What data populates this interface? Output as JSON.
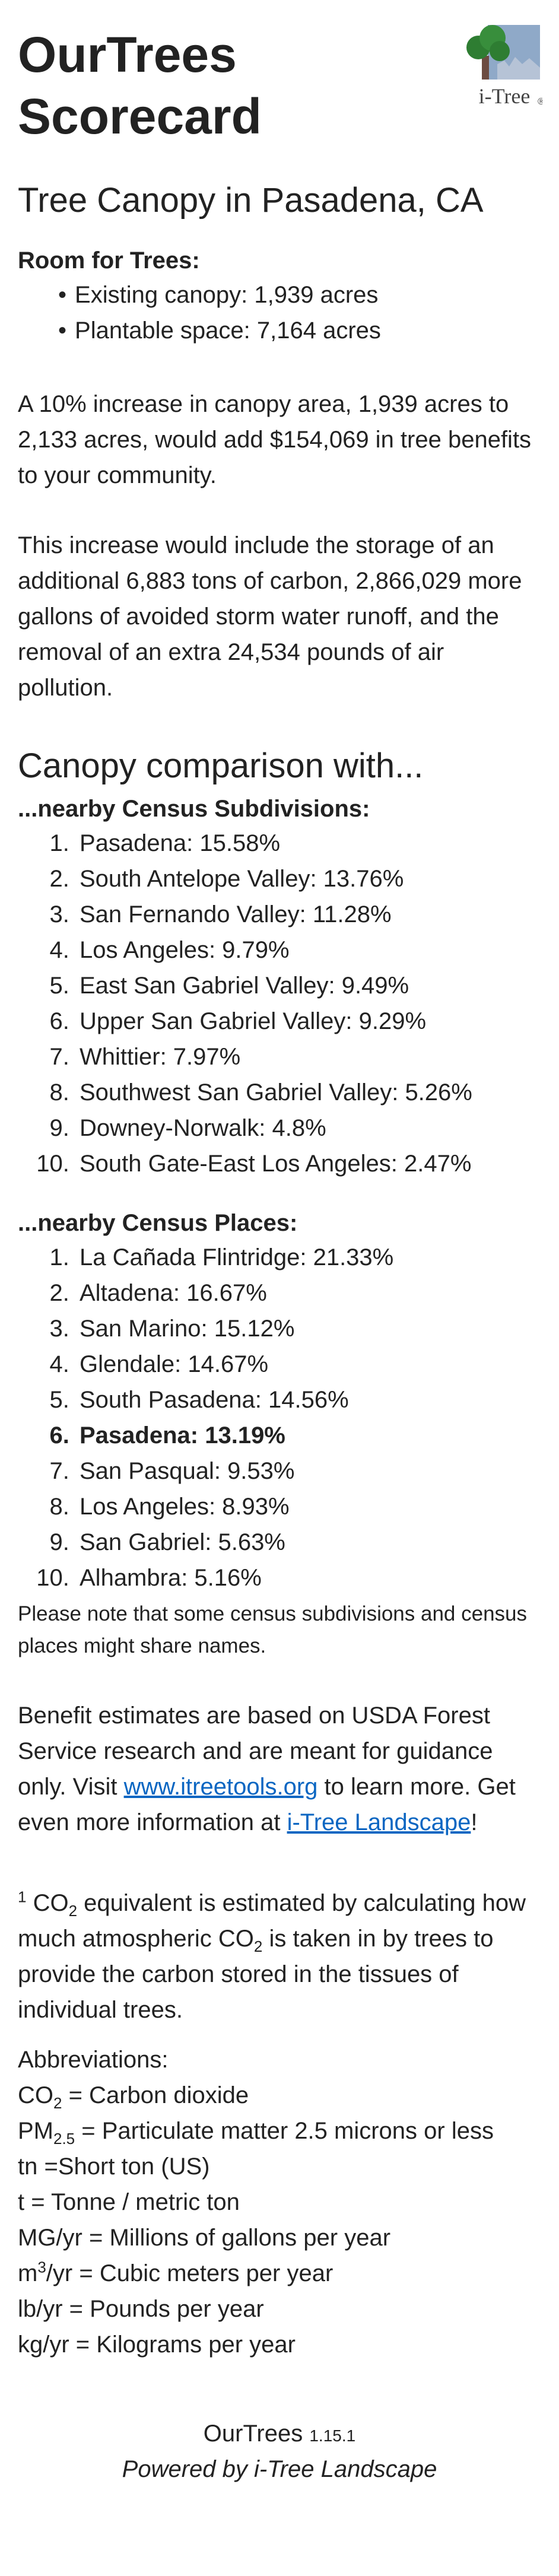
{
  "header": {
    "title": "OurTrees Scorecard",
    "logo_text": "i-Tree",
    "logo_mark": "®"
  },
  "subtitle": "Tree Canopy in Pasadena, CA",
  "room": {
    "label": "Room for Trees:",
    "items": [
      "Existing canopy: 1,939 acres",
      "Plantable space: 7,164 acres"
    ]
  },
  "para1": "A 10% increase in canopy area, 1,939 acres to 2,133 acres, would add $154,069 in tree benefits to your community.",
  "para2": "This increase would include the storage of an additional 6,883 tons of carbon, 2,866,029 more gallons of avoided storm water runoff, and the removal of an extra 24,534 pounds of air pollution.",
  "comparison": {
    "heading": "Canopy comparison with...",
    "subdivisions": {
      "label": "...nearby Census Subdivisions:",
      "items": [
        "Pasadena: 15.58%",
        "South Antelope Valley: 13.76%",
        "San Fernando Valley: 11.28%",
        "Los Angeles: 9.79%",
        "East San Gabriel Valley: 9.49%",
        "Upper San Gabriel Valley: 9.29%",
        "Whittier: 7.97%",
        "Southwest San Gabriel Valley: 5.26%",
        "Downey-Norwalk: 4.8%",
        "South Gate-East Los Angeles: 2.47%"
      ]
    },
    "places": {
      "label": "...nearby Census Places:",
      "items": [
        "La Cañada Flintridge: 21.33%",
        "Altadena: 16.67%",
        "San Marino: 15.12%",
        "Glendale: 14.67%",
        "South Pasadena: 14.56%",
        "Pasadena: 13.19%",
        "San Pasqual: 9.53%",
        "Los Angeles: 8.93%",
        "San Gabriel: 5.63%",
        "Alhambra: 5.16%"
      ],
      "highlight_index": 5
    },
    "note": "Please note that some census subdivisions and census places might share names."
  },
  "benefit": {
    "text1": "Benefit estimates are based on USDA Forest Service research and are meant for guidance only. Visit ",
    "link1": "www.itreetools.org",
    "text2": " to learn more. Get even more information at ",
    "link2": "i-Tree Landscape",
    "text3": "!"
  },
  "footnote": {
    "number": "1",
    "a": " CO",
    "sub1": "2",
    "b": " equivalent is estimated by calculating how much atmospheric CO",
    "sub2": "2",
    "c": " is taken in by trees to provide the carbon stored in the tissues of individual trees."
  },
  "abbreviations": {
    "label": "Abbreviations:",
    "co2_a": "CO",
    "co2_sub": "2",
    "co2_b": " = Carbon dioxide",
    "pm_a": "PM",
    "pm_sub": "2.5",
    "pm_b": " = Particulate matter 2.5 microns or less",
    "tn": "tn =Short ton (US)",
    "t": "t = Tonne / metric ton",
    "mg": "MG/yr = Millions of gallons per year",
    "m3_a": "m",
    "m3_sup": "3",
    "m3_b": "/yr = Cubic meters per year",
    "lb": "lb/yr = Pounds per year",
    "kg": "kg/yr = Kilograms per year"
  },
  "footer": {
    "name": "OurTrees",
    "version": "1.15.1",
    "powered": "Powered by i-Tree Landscape"
  },
  "colors": {
    "link": "#0a66c2",
    "text": "#222222",
    "logo_tree": "#2e7d32",
    "logo_trunk": "#6d4c41",
    "logo_sky": "#8fa9c8"
  }
}
